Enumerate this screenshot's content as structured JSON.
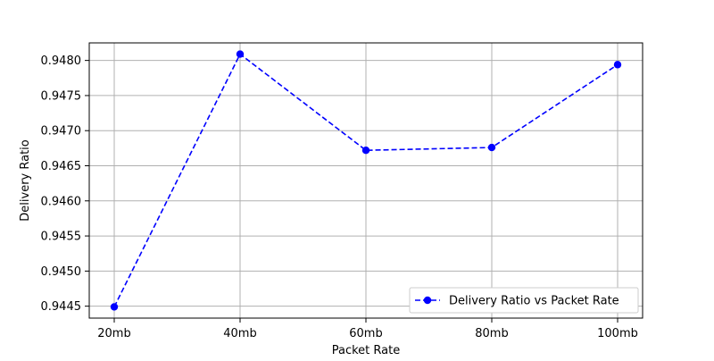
{
  "chart_data": {
    "type": "line",
    "title": "",
    "xlabel": "Packet Rate",
    "ylabel": "Delivery Ratio",
    "categories": [
      "20mb",
      "40mb",
      "60mb",
      "80mb",
      "100mb"
    ],
    "series": [
      {
        "name": "Delivery Ratio vs Packet Rate",
        "values": [
          0.94449,
          0.94809,
          0.94672,
          0.94676,
          0.94794
        ],
        "color": "#0000ff",
        "line_style": "dashed",
        "marker": "circle"
      }
    ],
    "ylim": [
      0.94433,
      0.94825
    ],
    "yticks": [
      0.9445,
      0.945,
      0.9455,
      0.946,
      0.9465,
      0.947,
      0.9475,
      0.948
    ],
    "ytick_labels": [
      "0.9445",
      "0.9450",
      "0.9455",
      "0.9460",
      "0.9465",
      "0.9470",
      "0.9475",
      "0.9480"
    ],
    "grid": true,
    "legend_position": "lower-right"
  }
}
